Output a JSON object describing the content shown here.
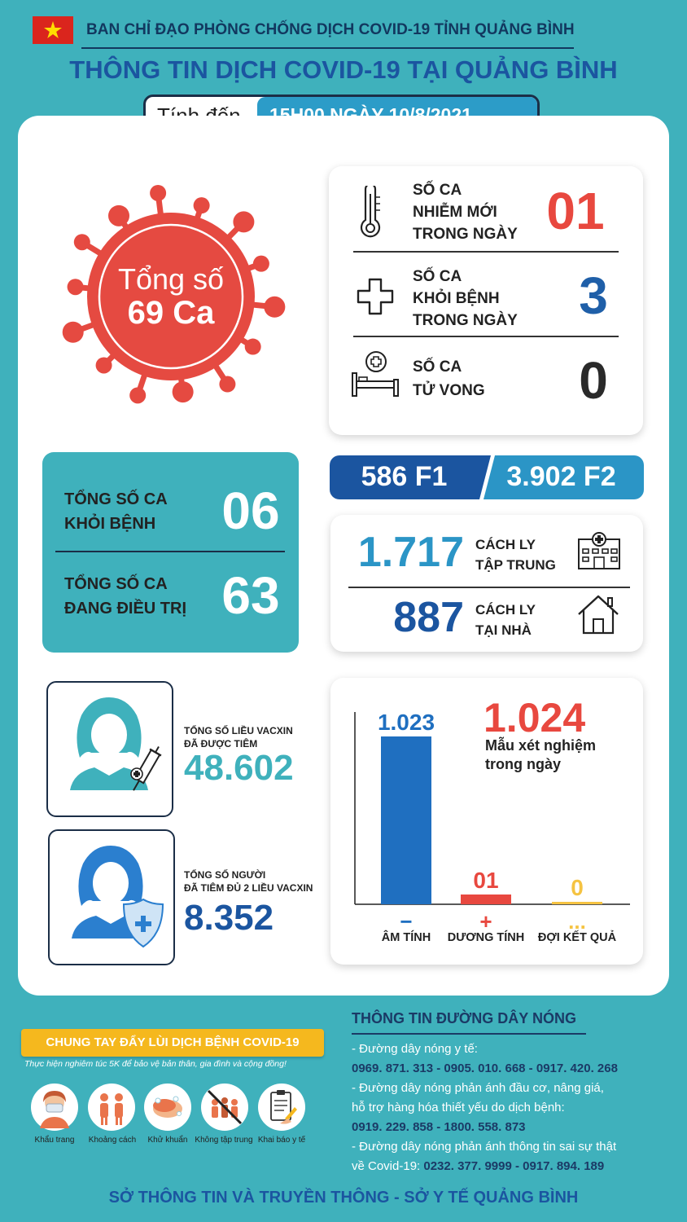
{
  "header": {
    "org": "BAN CHỈ ĐẠO PHÒNG CHỐNG DỊCH COVID-19 TỈNH QUẢNG BÌNH",
    "title": "THÔNG TIN DỊCH COVID-19 TẠI QUẢNG BÌNH",
    "as_of_label": "Tính đến",
    "as_of_value": "15H00 NGÀY 10/8/2021"
  },
  "total": {
    "label": "Tổng số",
    "value": "69 Ca"
  },
  "daily": {
    "new": {
      "label_1": "SỐ CA",
      "label_2": "NHIỄM MỚI",
      "label_3": "TRONG NGÀY",
      "value": "01"
    },
    "recovered": {
      "label_1": "SỐ CA",
      "label_2": "KHỎI BỆNH",
      "label_3": "TRONG NGÀY",
      "value": "3"
    },
    "deaths": {
      "label_1": "SỐ CA",
      "label_2": "TỬ VONG",
      "value": "0"
    }
  },
  "totals_box": {
    "recovered_label_1": "TỔNG SỐ CA",
    "recovered_label_2": "KHỎI BỆNH",
    "recovered_value": "06",
    "treating_label_1": "TỔNG SỐ CA",
    "treating_label_2": "ĐANG ĐIỀU TRỊ",
    "treating_value": "63"
  },
  "contacts": {
    "f1": "586 F1",
    "f2": "3.902 F2"
  },
  "quarantine": {
    "central_value": "1.717",
    "central_label_1": "CÁCH LY",
    "central_label_2": "TẬP TRUNG",
    "home_value": "887",
    "home_label_1": "CÁCH LY",
    "home_label_2": "TẠI NHÀ"
  },
  "vaccine": {
    "doses_label_1": "TỔNG SỐ LIỀU VACXIN",
    "doses_label_2": "ĐÃ ĐƯỢC TIÊM",
    "doses_value": "48.602",
    "full_label_1": "TỔNG SỐ NGƯỜI",
    "full_label_2": "ĐÃ TIÊM ĐỦ 2 LIỀU VACXIN",
    "full_value": "8.352"
  },
  "tests": {
    "total": "1.024",
    "total_label_1": "Mẫu xét nghiệm",
    "total_label_2": "trong ngày",
    "symbols": [
      "−",
      "+",
      "..."
    ]
  },
  "chart_data": {
    "type": "bar",
    "categories": [
      "ÂM TÍNH",
      "DƯƠNG TÍNH",
      "ĐỢI KẾT QUẢ"
    ],
    "value_labels": [
      "1.023",
      "01",
      "0"
    ],
    "values": [
      1023,
      1,
      0
    ],
    "colors": [
      "#1f6fc0",
      "#e8483f",
      "#f5c342"
    ]
  },
  "campaign": {
    "banner": "CHUNG TAY ĐẨY LÙI DỊCH BỆNH COVID-19",
    "subtitle": "Thực hiện nghiêm túc 5K để bảo vệ bản thân, gia đình và cộng đồng!",
    "items": [
      "Khẩu trang",
      "Khoảng cách",
      "Khử khuẩn",
      "Không tập trung",
      "Khai báo y tế"
    ]
  },
  "hotline": {
    "title": "THÔNG TIN ĐƯỜNG DÂY NÓNG",
    "line1": "- Đường dây nóng y tế:",
    "line2": "0969. 871. 313  -  0905. 010. 668  -  0917. 420. 268",
    "line3": "- Đường dây nóng phản ánh đầu cơ, nâng giá,",
    "line4": "hỗ trợ hàng hóa thiết yếu do dịch bệnh:",
    "line5": "0919. 229. 858  -  1800. 558. 873",
    "line6": "- Đường dây nóng phản ánh thông tin sai sự thật",
    "line7_prefix": "về Covid-19: ",
    "line7_numbers": "0232. 377. 9999  -  0917. 894. 189"
  },
  "footer": "SỞ THÔNG TIN VÀ TRUYỀN THÔNG - SỞ Y TẾ QUẢNG BÌNH",
  "colors": {
    "teal": "#3fb1bc",
    "navy": "#1f5fa8",
    "red": "#e8483f",
    "bar_blue": "#1f6fc0"
  }
}
